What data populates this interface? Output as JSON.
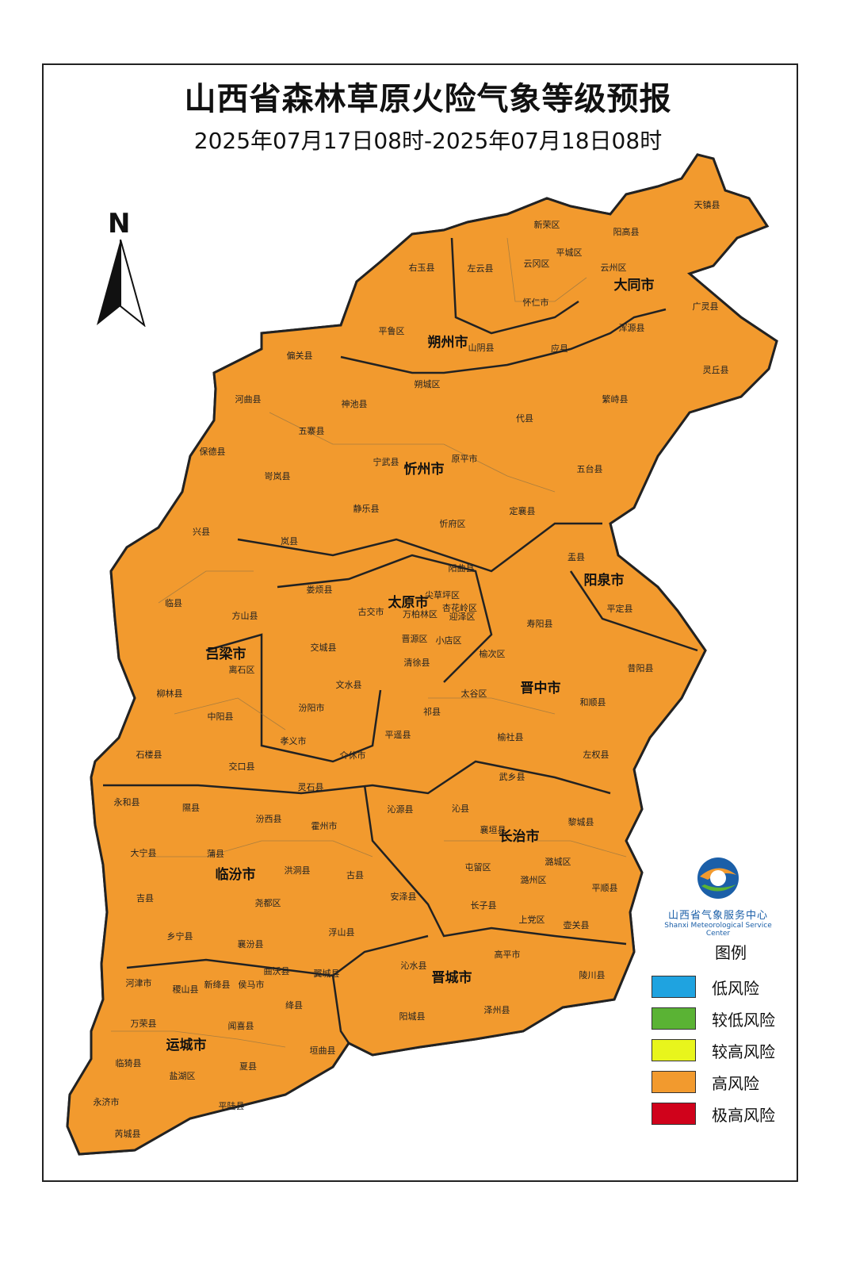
{
  "title": "山西省森林草原火险气象等级预报",
  "subtitle": "2025年07月17日08时-2025年07月18日08时",
  "compass": {
    "label": "N"
  },
  "logo": {
    "name_cn": "山西省气象服务中心",
    "name_en": "Shanxi Meteorological Service Center"
  },
  "legend": {
    "title": "图例",
    "items": [
      {
        "label": "低风险",
        "color": "#1fa3e0"
      },
      {
        "label": "较低风险",
        "color": "#5ab334"
      },
      {
        "label": "较高风险",
        "color": "#e8f51c"
      },
      {
        "label": "高风险",
        "color": "#f29a2e"
      },
      {
        "label": "极高风险",
        "color": "#d0021b"
      }
    ]
  },
  "cities": [
    "大同市",
    "朔州市",
    "忻州市",
    "阳泉市",
    "太原市",
    "吕梁市",
    "晋中市",
    "长治市",
    "临汾市",
    "晋城市",
    "运城市"
  ],
  "counties": [
    "天镇县",
    "新荣区",
    "阳高县",
    "右玉县",
    "左云县",
    "云冈区",
    "平城区",
    "云州区",
    "怀仁市",
    "广灵县",
    "平鲁区",
    "山阴县",
    "应县",
    "浑源县",
    "灵丘县",
    "偏关县",
    "河曲县",
    "神池县",
    "朔城区",
    "繁峙县",
    "五寨县",
    "代县",
    "保德县",
    "宁武县",
    "原平市",
    "五台县",
    "岢岚县",
    "定襄县",
    "兴县",
    "静乐县",
    "忻府区",
    "岚县",
    "盂县",
    "阳曲县",
    "娄烦县",
    "尖草坪区",
    "古交市",
    "万柏林区",
    "杏花岭区",
    "迎泽区",
    "临县",
    "方山县",
    "晋源区",
    "小店区",
    "平定县",
    "寿阳县",
    "交城县",
    "离石区",
    "榆次区",
    "清徐县",
    "昔阳县",
    "文水县",
    "柳林县",
    "汾阳市",
    "太谷区",
    "和顺县",
    "中阳县",
    "祁县",
    "孝义市",
    "平遥县",
    "榆社县",
    "石楼县",
    "介休市",
    "左权县",
    "交口县",
    "灵石县",
    "武乡县",
    "永和县",
    "隰县",
    "沁源县",
    "沁县",
    "襄垣县",
    "黎城县",
    "汾西县",
    "霍州市",
    "大宁县",
    "蒲县",
    "屯留区",
    "潞城区",
    "洪洞县",
    "古县",
    "潞州区",
    "平顺县",
    "吉县",
    "尧都区",
    "安泽县",
    "长子县",
    "上党区",
    "壶关县",
    "乡宁县",
    "襄汾县",
    "浮山县",
    "高平市",
    "曲沃县",
    "翼城县",
    "沁水县",
    "陵川县",
    "河津市",
    "稷山县",
    "新绛县",
    "侯马市",
    "绛县",
    "泽州县",
    "万荣县",
    "闻喜县",
    "阳城县",
    "垣曲县",
    "临猗县",
    "盐湖区",
    "夏县",
    "永济市",
    "平陆县",
    "芮城县"
  ]
}
